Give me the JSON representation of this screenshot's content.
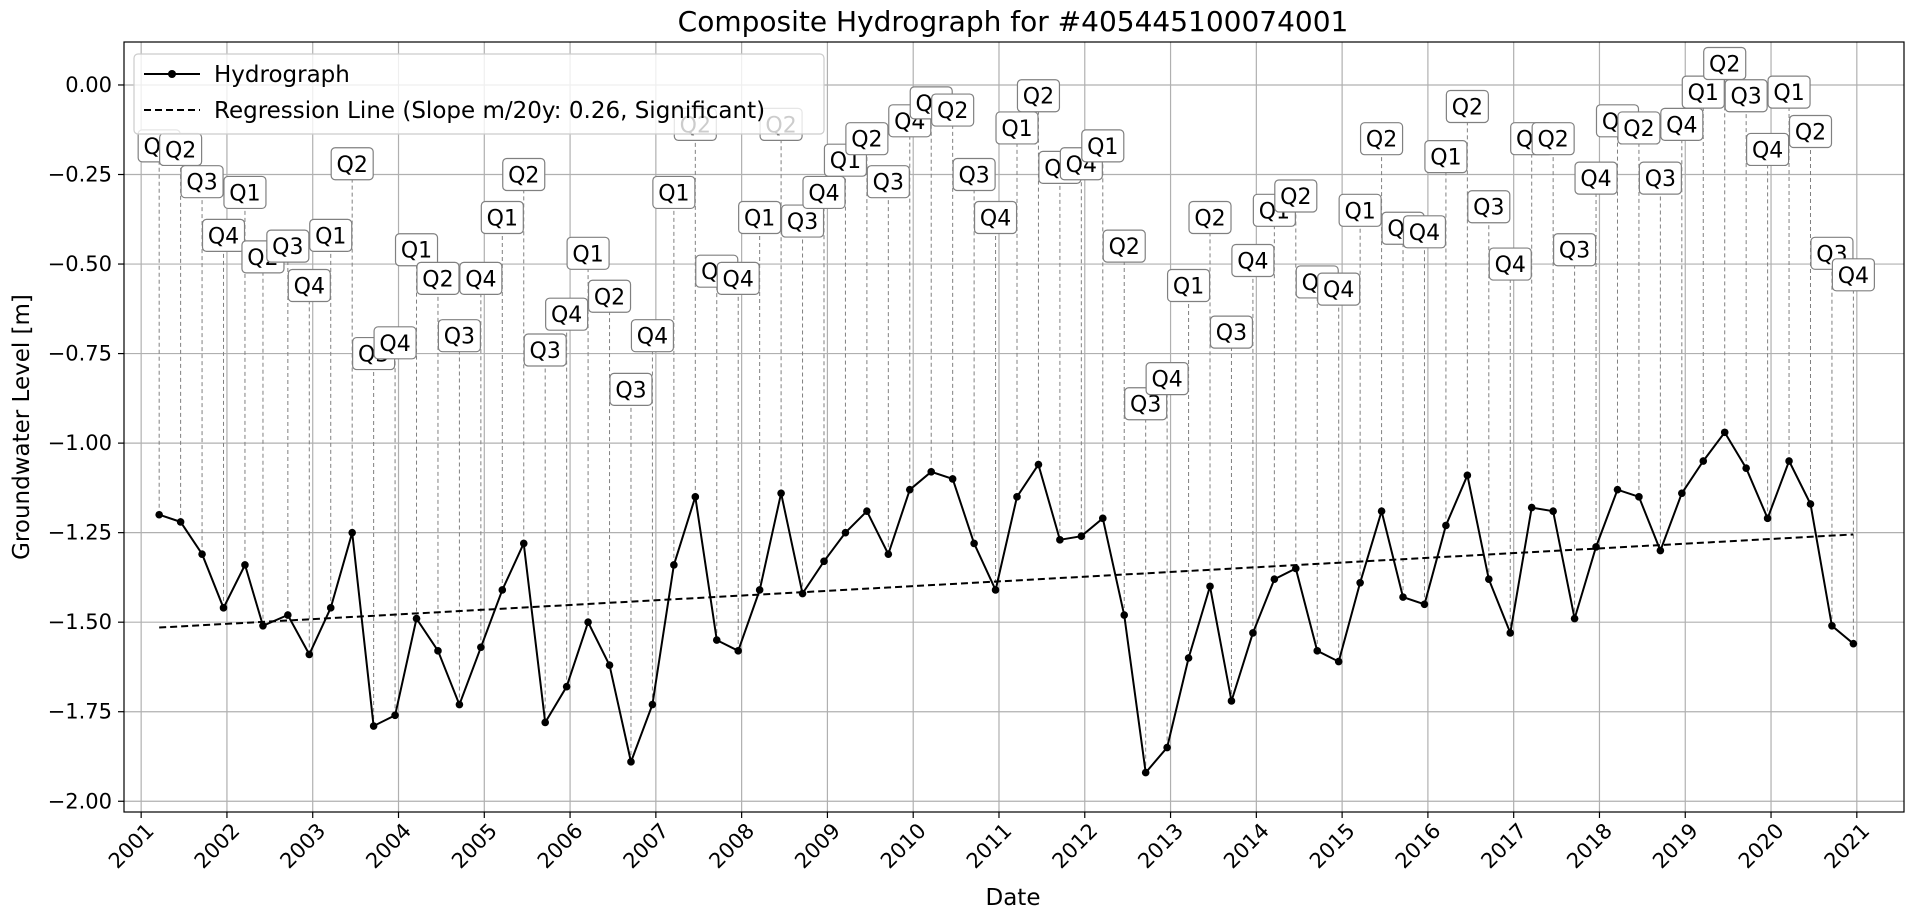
{
  "chart_data": {
    "type": "line",
    "title": "Composite Hydrograph for  #405445100074001",
    "xlabel": "Date",
    "ylabel": "Groundwater Level [m]",
    "xlim": [
      2000.8,
      2021.55
    ],
    "ylim": [
      -2.03,
      0.12
    ],
    "x_ticks": [
      "2001",
      "2002",
      "2003",
      "2004",
      "2005",
      "2006",
      "2007",
      "2008",
      "2009",
      "2010",
      "2011",
      "2012",
      "2013",
      "2014",
      "2015",
      "2016",
      "2017",
      "2018",
      "2019",
      "2020",
      "2021"
    ],
    "y_ticks": [
      0.0,
      -0.25,
      -0.5,
      -0.75,
      -1.0,
      -1.25,
      -1.5,
      -1.75,
      -2.0
    ],
    "y_tick_labels": [
      "0.00",
      "−0.25",
      "−0.50",
      "−0.75",
      "−1.00",
      "−1.25",
      "−1.50",
      "−1.75",
      "−2.00"
    ],
    "grid": true,
    "legend_position": "top-left",
    "series": [
      {
        "name": "Hydrograph",
        "style": "solid-with-dots",
        "color": "#000000",
        "x": [
          2001.21,
          2001.46,
          2001.71,
          2001.96,
          2002.21,
          2002.42,
          2002.71,
          2002.96,
          2003.21,
          2003.46,
          2003.71,
          2003.96,
          2004.21,
          2004.46,
          2004.71,
          2004.96,
          2005.21,
          2005.46,
          2005.71,
          2005.96,
          2006.21,
          2006.46,
          2006.71,
          2006.96,
          2007.21,
          2007.46,
          2007.71,
          2007.96,
          2008.21,
          2008.46,
          2008.71,
          2008.96,
          2009.21,
          2009.46,
          2009.71,
          2009.96,
          2010.21,
          2010.46,
          2010.71,
          2010.96,
          2011.21,
          2011.46,
          2011.71,
          2011.96,
          2012.21,
          2012.46,
          2012.71,
          2012.96,
          2013.21,
          2013.46,
          2013.71,
          2013.96,
          2014.21,
          2014.46,
          2014.71,
          2014.96,
          2015.21,
          2015.46,
          2015.71,
          2015.96,
          2016.21,
          2016.46,
          2016.71,
          2016.96,
          2017.21,
          2017.46,
          2017.71,
          2017.96,
          2018.21,
          2018.46,
          2018.71,
          2018.96,
          2019.21,
          2019.46,
          2019.71,
          2019.96,
          2020.21,
          2020.46,
          2020.71,
          2020.96
        ],
        "y": [
          -1.2,
          -1.22,
          -1.31,
          -1.46,
          -1.34,
          -1.51,
          -1.48,
          -1.59,
          -1.46,
          -1.25,
          -1.79,
          -1.76,
          -1.49,
          -1.58,
          -1.73,
          -1.57,
          -1.41,
          -1.28,
          -1.78,
          -1.68,
          -1.5,
          -1.62,
          -1.89,
          -1.73,
          -1.34,
          -1.15,
          -1.55,
          -1.58,
          -1.41,
          -1.14,
          -1.42,
          -1.33,
          -1.25,
          -1.19,
          -1.31,
          -1.13,
          -1.08,
          -1.1,
          -1.28,
          -1.41,
          -1.15,
          -1.06,
          -1.27,
          -1.26,
          -1.21,
          -1.48,
          -1.92,
          -1.85,
          -1.6,
          -1.4,
          -1.72,
          -1.53,
          -1.38,
          -1.35,
          -1.58,
          -1.61,
          -1.39,
          -1.19,
          -1.43,
          -1.45,
          -1.23,
          -1.09,
          -1.38,
          -1.53,
          -1.18,
          -1.19,
          -1.49,
          -1.29,
          -1.13,
          -1.15,
          -1.3,
          -1.14,
          -1.05,
          -0.97,
          -1.07,
          -1.21,
          -1.05,
          -1.17,
          -1.51,
          -1.56
        ]
      },
      {
        "name": "Regression Line (Slope m/20y: 0.26, Significant)",
        "style": "dashed",
        "color": "#000000",
        "x": [
          2001.21,
          2020.96
        ],
        "y": [
          -1.515,
          -1.255
        ]
      }
    ],
    "annotations": {
      "labels": [
        "Q1",
        "Q2",
        "Q3",
        "Q4",
        "Q1",
        "Q2",
        "Q3",
        "Q4",
        "Q1",
        "Q2",
        "Q3",
        "Q4",
        "Q1",
        "Q2",
        "Q3",
        "Q4",
        "Q1",
        "Q2",
        "Q3",
        "Q4",
        "Q1",
        "Q2",
        "Q3",
        "Q4",
        "Q1",
        "Q2",
        "Q3",
        "Q4",
        "Q1",
        "Q2",
        "Q3",
        "Q4",
        "Q1",
        "Q2",
        "Q3",
        "Q4",
        "Q1",
        "Q2",
        "Q3",
        "Q4",
        "Q1",
        "Q2",
        "Q3",
        "Q4",
        "Q1",
        "Q2",
        "Q3",
        "Q4",
        "Q1",
        "Q2",
        "Q3",
        "Q4",
        "Q1",
        "Q2",
        "Q3",
        "Q4",
        "Q1",
        "Q2",
        "Q3",
        "Q4",
        "Q1",
        "Q2",
        "Q3",
        "Q4",
        "Q1",
        "Q2",
        "Q3",
        "Q4",
        "Q1",
        "Q2",
        "Q3",
        "Q4",
        "Q1",
        "Q2",
        "Q3",
        "Q4",
        "Q1",
        "Q2",
        "Q3",
        "Q4"
      ],
      "label_y": [
        -0.17,
        -0.18,
        -0.27,
        -0.42,
        -0.3,
        -0.48,
        -0.45,
        -0.56,
        -0.42,
        -0.22,
        -0.75,
        -0.72,
        -0.46,
        -0.54,
        -0.7,
        -0.54,
        -0.37,
        -0.25,
        -0.74,
        -0.64,
        -0.47,
        -0.59,
        -0.85,
        -0.7,
        -0.3,
        -0.11,
        -0.52,
        -0.54,
        -0.37,
        -0.11,
        -0.38,
        -0.3,
        -0.21,
        -0.15,
        -0.27,
        -0.1,
        -0.05,
        -0.07,
        -0.25,
        -0.37,
        -0.12,
        -0.03,
        -0.23,
        -0.22,
        -0.17,
        -0.45,
        -0.89,
        -0.82,
        -0.56,
        -0.37,
        -0.69,
        -0.49,
        -0.35,
        -0.31,
        -0.55,
        -0.57,
        -0.35,
        -0.15,
        -0.4,
        -0.41,
        -0.2,
        -0.06,
        -0.34,
        -0.5,
        -0.15,
        -0.15,
        -0.46,
        -0.26,
        -0.1,
        -0.12,
        -0.26,
        -0.11,
        -0.02,
        0.06,
        -0.03,
        -0.18,
        -0.02,
        -0.13,
        -0.47,
        -0.53
      ]
    }
  }
}
